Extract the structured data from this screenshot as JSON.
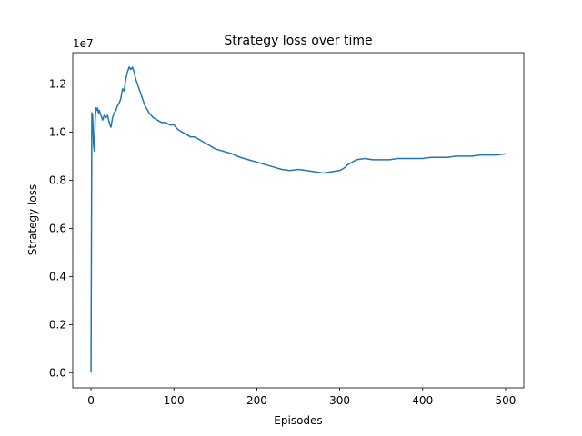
{
  "chart_data": {
    "type": "line",
    "title": "Strategy loss over time",
    "xlabel": "Episodes",
    "ylabel": "Strategy loss",
    "y_offset_label": "1e7",
    "xlim": [
      -22,
      522
    ],
    "ylim": [
      -0.063,
      1.33
    ],
    "x_ticks": [
      0,
      100,
      200,
      300,
      400,
      500
    ],
    "x_tick_labels": [
      "0",
      "100",
      "200",
      "300",
      "400",
      "500"
    ],
    "y_ticks": [
      0.0,
      0.2,
      0.4,
      0.6,
      0.8,
      1.0,
      1.2
    ],
    "y_tick_labels": [
      "0.0",
      "0.2",
      "0.4",
      "0.6",
      "0.8",
      "1.0",
      "1.2"
    ],
    "grid": false,
    "legend": "none",
    "series": [
      {
        "color": "#1f77b4",
        "x": [
          0,
          1,
          2,
          3,
          4,
          5,
          6,
          7,
          8,
          9,
          10,
          12,
          14,
          16,
          18,
          20,
          22,
          24,
          26,
          28,
          30,
          32,
          34,
          36,
          38,
          40,
          42,
          44,
          46,
          48,
          50,
          52,
          54,
          56,
          58,
          60,
          62,
          65,
          70,
          75,
          80,
          85,
          90,
          95,
          100,
          105,
          110,
          115,
          120,
          125,
          130,
          140,
          150,
          160,
          170,
          180,
          190,
          200,
          210,
          220,
          230,
          240,
          250,
          260,
          270,
          280,
          290,
          300,
          305,
          310,
          320,
          330,
          340,
          350,
          360,
          370,
          380,
          390,
          400,
          410,
          420,
          430,
          440,
          450,
          460,
          470,
          480,
          490,
          500
        ],
        "values": [
          0.0,
          1.08,
          1.07,
          0.95,
          0.92,
          1.05,
          1.1,
          1.09,
          1.1,
          1.08,
          1.09,
          1.07,
          1.05,
          1.07,
          1.06,
          1.07,
          1.04,
          1.02,
          1.06,
          1.08,
          1.09,
          1.11,
          1.12,
          1.14,
          1.18,
          1.17,
          1.22,
          1.25,
          1.27,
          1.26,
          1.27,
          1.25,
          1.22,
          1.2,
          1.18,
          1.16,
          1.14,
          1.11,
          1.08,
          1.06,
          1.05,
          1.04,
          1.04,
          1.03,
          1.03,
          1.01,
          1.0,
          0.99,
          0.98,
          0.98,
          0.97,
          0.95,
          0.93,
          0.92,
          0.91,
          0.895,
          0.885,
          0.875,
          0.865,
          0.855,
          0.845,
          0.84,
          0.845,
          0.84,
          0.835,
          0.83,
          0.835,
          0.84,
          0.85,
          0.865,
          0.885,
          0.89,
          0.885,
          0.885,
          0.885,
          0.89,
          0.89,
          0.89,
          0.89,
          0.895,
          0.895,
          0.895,
          0.9,
          0.9,
          0.9,
          0.905,
          0.905,
          0.905,
          0.91
        ]
      }
    ]
  }
}
